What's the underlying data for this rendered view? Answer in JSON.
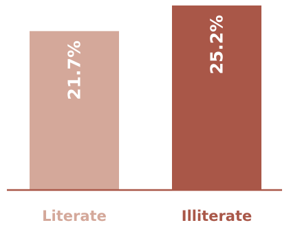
{
  "chart_data": {
    "type": "bar",
    "categories": [
      "Literate",
      "Illiterate"
    ],
    "values": [
      21.7,
      25.2
    ],
    "data_labels": [
      "21.7%",
      "25.2%"
    ],
    "ylim": [
      0,
      25.2
    ],
    "grid": false,
    "colors": {
      "bars": [
        "#d4a89a",
        "#a95748"
      ],
      "category_labels": [
        "#d4a89a",
        "#a95748"
      ],
      "baseline": "#a95748",
      "data_label": "#ffffff"
    }
  }
}
